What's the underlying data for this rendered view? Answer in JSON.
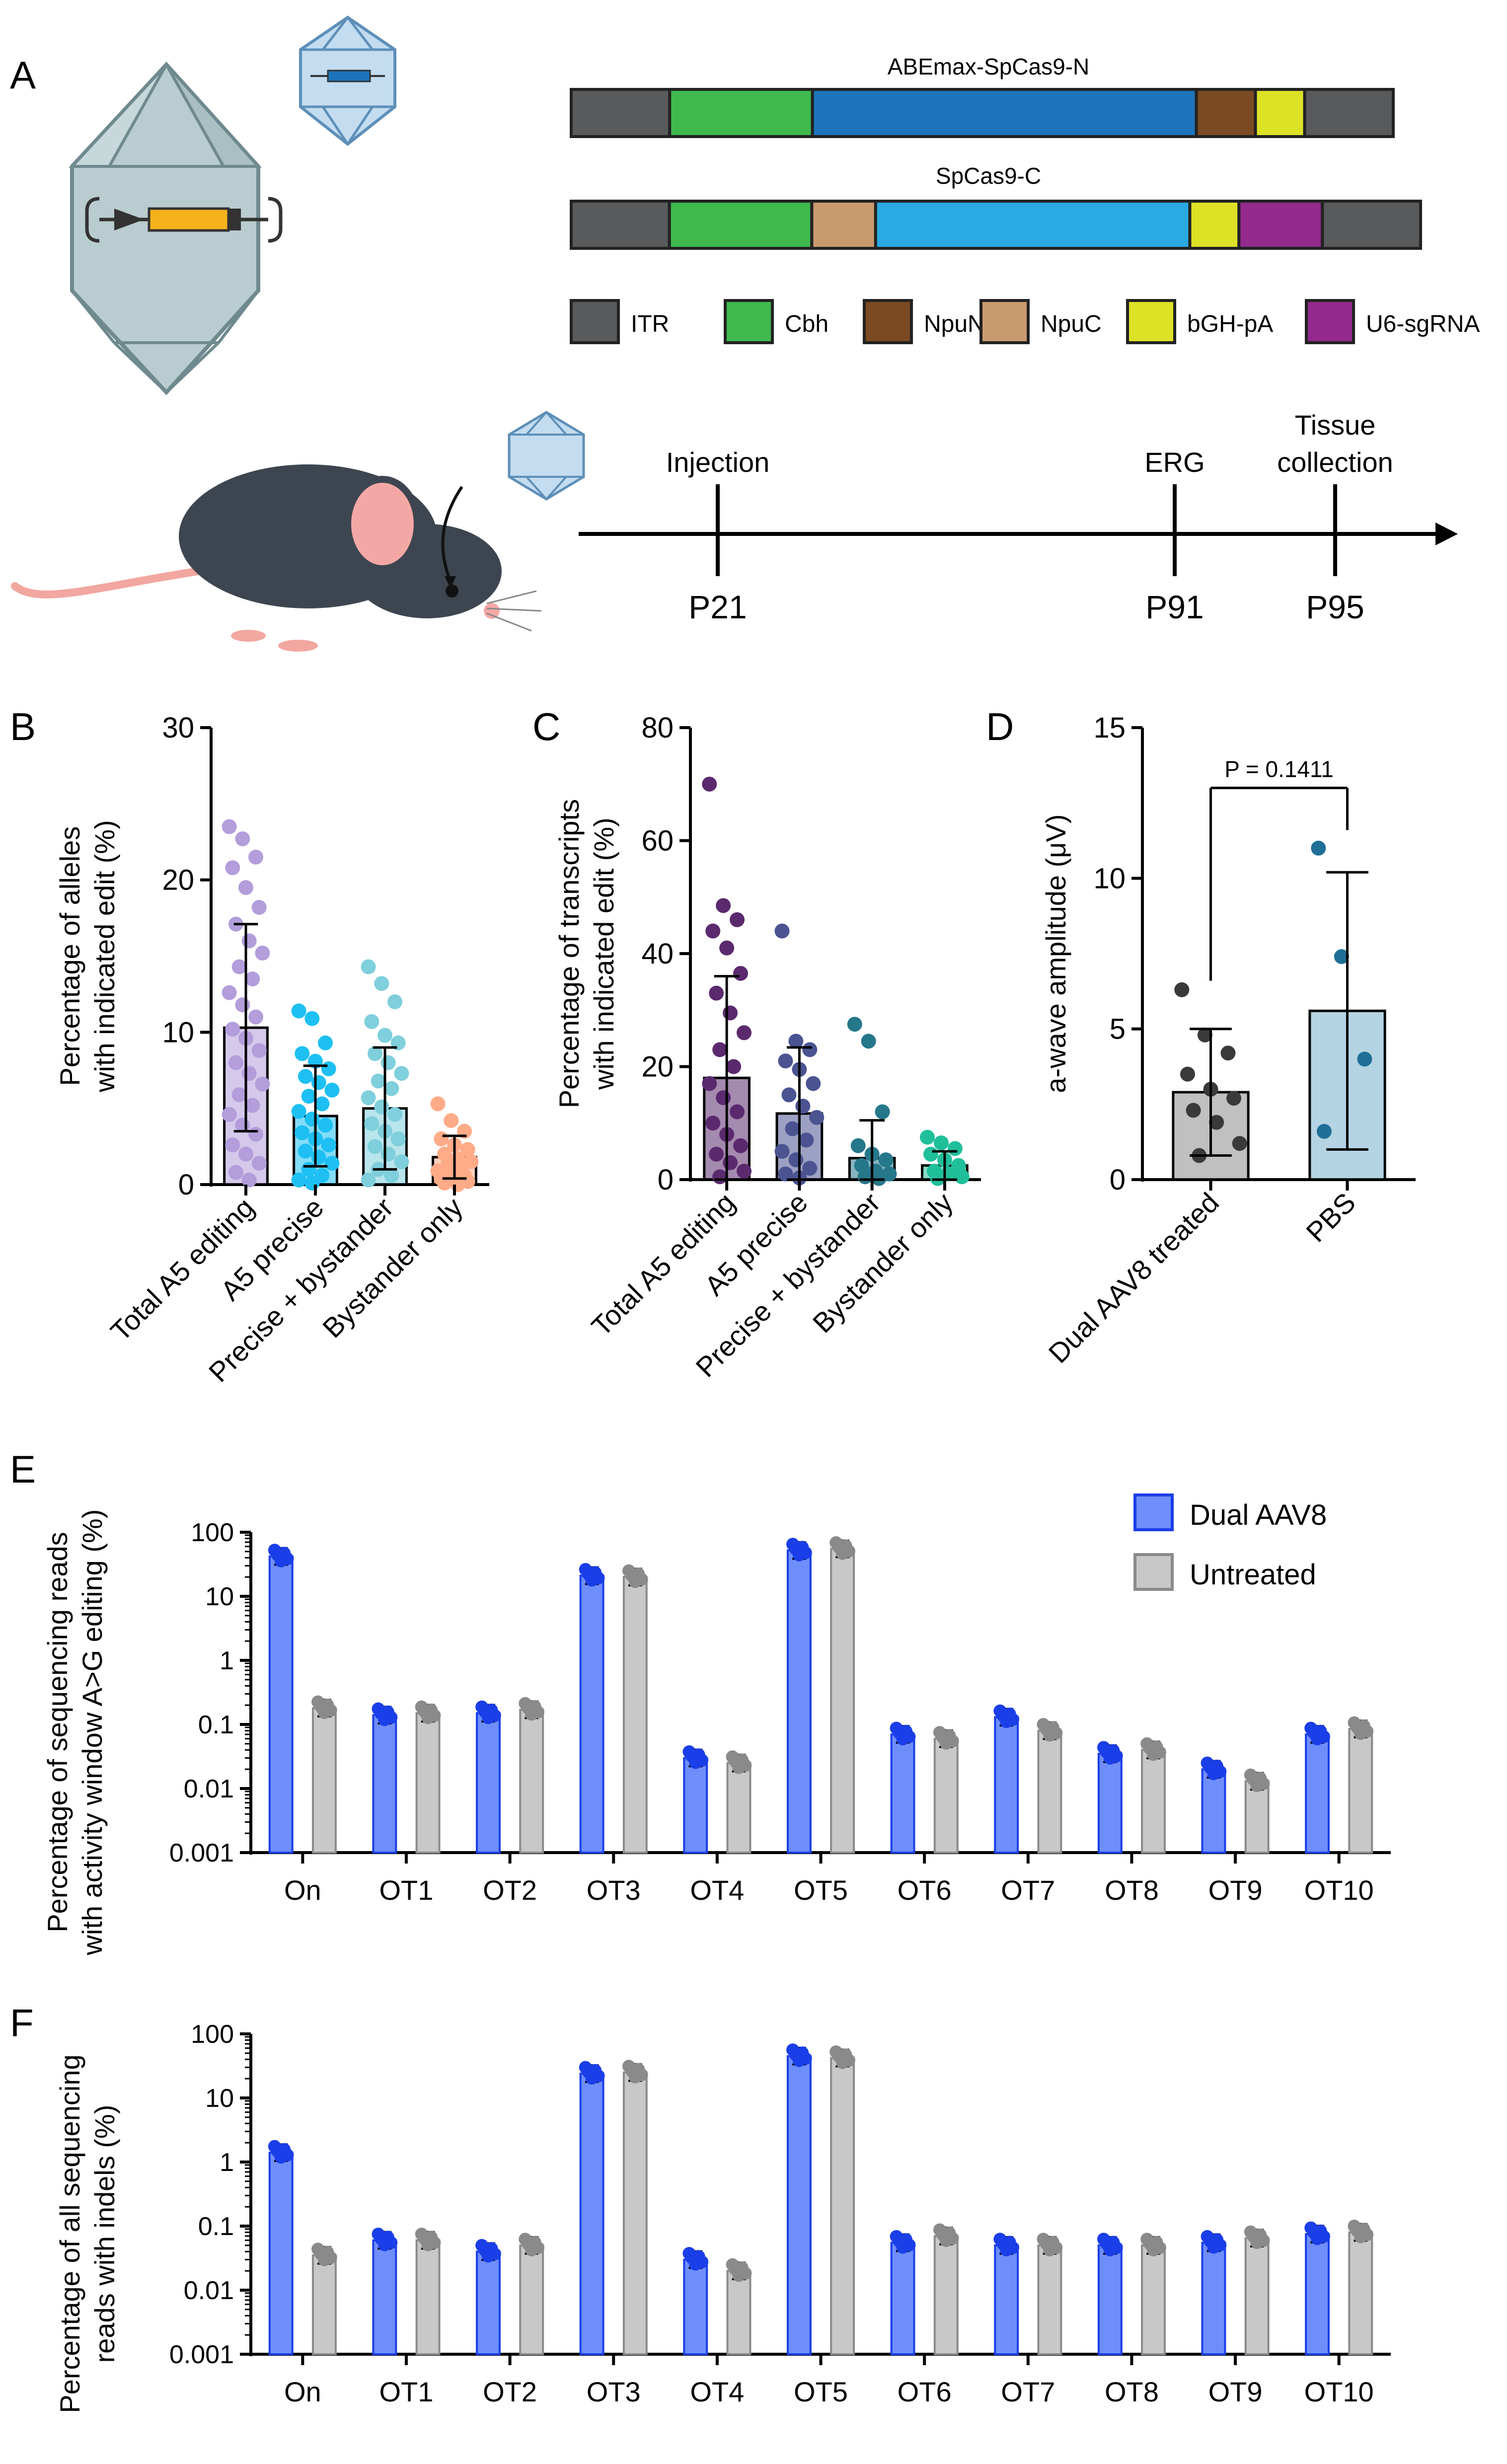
{
  "panels": {
    "A": "A",
    "B": "B",
    "C": "C",
    "D": "D",
    "E": "E",
    "F": "F"
  },
  "constructs": [
    {
      "name": "ABEmax-SpCas9-N",
      "segments": [
        {
          "part": "ITR",
          "w": 1.0
        },
        {
          "part": "Cbh",
          "w": 1.45
        },
        {
          "part": "SpCas9",
          "w": 3.9
        },
        {
          "part": "NpuN",
          "w": 0.6
        },
        {
          "part": "bGH-pA",
          "w": 0.5
        },
        {
          "part": "ITR",
          "w": 0.9
        }
      ]
    },
    {
      "name": "SpCas9-C",
      "segments": [
        {
          "part": "ITR",
          "w": 1.0
        },
        {
          "part": "Cbh",
          "w": 1.45
        },
        {
          "part": "NpuC",
          "w": 0.65
        },
        {
          "part": "SpCas9",
          "w": 3.2
        },
        {
          "part": "bGH-pA",
          "w": 0.5
        },
        {
          "part": "U6-sgRNA",
          "w": 0.85
        },
        {
          "part": "ITR",
          "w": 1.0
        }
      ]
    }
  ],
  "legend_a": [
    {
      "part": "ITR",
      "label": "ITR"
    },
    {
      "part": "Cbh",
      "label": "Cbh"
    },
    {
      "part": "NpuN",
      "label": "NpuN"
    },
    {
      "part": "NpuC",
      "label": "NpuC"
    },
    {
      "part": "bGH-pA",
      "label": "bGH-pA"
    },
    {
      "part": "U6-sgRNA",
      "label": "U6-sgRNA"
    }
  ],
  "part_colors": {
    "ITR": "#595a5c",
    "Cbh": "#3fb94e",
    "NpuN": "#7b4a22",
    "NpuC": "#c99a6e",
    "bGH-pA": "#dde227",
    "U6-sgRNA": "#932a8c",
    "SpCas9": "#1e74ba",
    "SpCas9-C": "#2aaae2"
  },
  "timeline": {
    "events": [
      {
        "label": "Injection",
        "day": "P21"
      },
      {
        "label": "ERG",
        "day": "P91"
      },
      {
        "label": "Tissue collection",
        "label_lines": [
          "Tissue",
          "collection"
        ],
        "day": "P95"
      }
    ]
  },
  "chart_data": [
    {
      "panel": "B",
      "type": "bar",
      "ylabel_lines": [
        "Percentage of alleles",
        "with indicated edit (%)"
      ],
      "ylim": [
        0,
        30
      ],
      "yticks": [
        0,
        10,
        20,
        30
      ],
      "categories": [
        "Total A5 editing",
        "A5 precise",
        "Precise + bystander",
        "Bystander only"
      ],
      "values": [
        10.3,
        4.5,
        5.0,
        1.8
      ],
      "sd": [
        6.8,
        3.3,
        4.0,
        1.4
      ],
      "colors": [
        "#b39ddb",
        "#1ec0f3",
        "#7fcfdc",
        "#ffab87"
      ],
      "points": [
        [
          23.5,
          22.7,
          21.5,
          20.8,
          19.5,
          18.2,
          17.1,
          16.0,
          15.2,
          14.3,
          13.5,
          12.6,
          11.8,
          11.0,
          10.2,
          9.6,
          8.8,
          8.0,
          7.3,
          6.6,
          5.9,
          5.2,
          4.6,
          3.9,
          3.3,
          2.6,
          2.0,
          1.4,
          0.8,
          0.3
        ],
        [
          11.4,
          10.9,
          9.3,
          8.6,
          8.1,
          7.6,
          7.1,
          6.7,
          6.2,
          5.8,
          5.3,
          4.8,
          4.3,
          3.9,
          3.4,
          3.0,
          2.6,
          2.2,
          1.8,
          1.4,
          1.0,
          0.6,
          0.3,
          0.1
        ],
        [
          14.3,
          13.2,
          12.0,
          10.7,
          9.8,
          9.3,
          8.6,
          8.0,
          7.3,
          6.8,
          6.3,
          5.7,
          5.1,
          4.6,
          4.0,
          3.5,
          3.0,
          2.5,
          2.0,
          1.5,
          1.0,
          0.6,
          0.3
        ],
        [
          5.3,
          4.2,
          3.5,
          3.0,
          2.6,
          2.3,
          2.0,
          1.7,
          1.5,
          1.3,
          1.1,
          0.9,
          0.7,
          0.6,
          0.4,
          0.3,
          0.2,
          0.1,
          0.0
        ]
      ]
    },
    {
      "panel": "C",
      "type": "bar",
      "ylabel_lines": [
        "Percentage of transcripts",
        "with indicated edit (%)"
      ],
      "ylim": [
        0,
        80
      ],
      "yticks": [
        0,
        20,
        40,
        60,
        80
      ],
      "categories": [
        "Total A5 editing",
        "A5 precise",
        "Precise + bystander",
        "Bystander only"
      ],
      "values": [
        18.0,
        11.7,
        3.8,
        2.5
      ],
      "sd": [
        18.0,
        11.7,
        6.7,
        2.5
      ],
      "colors": [
        "#5b2a6e",
        "#4b5491",
        "#25778a",
        "#1fbf9a"
      ],
      "points": [
        [
          70.0,
          48.5,
          46.0,
          44.0,
          41.0,
          36.5,
          33.0,
          29.5,
          26.0,
          23.0,
          20.0,
          17.0,
          14.5,
          12.0,
          10.0,
          8.0,
          6.0,
          4.5,
          3.0,
          1.5,
          0.5
        ],
        [
          44.0,
          24.5,
          23.0,
          21.0,
          19.5,
          17.0,
          15.0,
          13.0,
          11.0,
          9.0,
          7.0,
          5.0,
          3.5,
          2.0,
          1.0,
          0.3
        ],
        [
          27.5,
          24.5,
          12.0,
          6.0,
          4.5,
          3.5,
          2.5,
          1.5,
          1.0,
          0.5,
          0.2
        ],
        [
          7.5,
          6.5,
          5.5,
          4.5,
          3.5,
          2.5,
          1.5,
          1.0,
          0.5,
          0.2
        ]
      ]
    },
    {
      "panel": "D",
      "type": "bar",
      "ylabel": "a-wave amplitude (μV)",
      "ylim": [
        0,
        15
      ],
      "yticks": [
        0,
        5,
        10,
        15
      ],
      "categories": [
        "Dual AAV8 treated",
        "PBS"
      ],
      "values": [
        2.9,
        5.6
      ],
      "sd": [
        2.1,
        4.6
      ],
      "colors": [
        "#8c8c8c",
        "#78b0cc"
      ],
      "point_colors": [
        "#3a3a3a",
        "#1f6f96"
      ],
      "points": [
        [
          6.3,
          4.8,
          4.2,
          3.5,
          3.0,
          2.7,
          2.3,
          1.9,
          1.2,
          0.8
        ],
        [
          11.0,
          7.4,
          4.0,
          1.6
        ]
      ],
      "annotation_label": "P = 0.1411"
    },
    {
      "panel": "E",
      "type": "bar",
      "yscale": "log",
      "ylabel_lines": [
        "Percentage of sequencing reads",
        "with activity window A>G editing (%)"
      ],
      "ylim": [
        0.001,
        100
      ],
      "yticks": [
        "0.001",
        "0.01",
        "0.1",
        "1",
        "10",
        "100"
      ],
      "categories": [
        "On",
        "OT1",
        "OT2",
        "OT3",
        "OT4",
        "OT5",
        "OT6",
        "OT7",
        "OT8",
        "OT9",
        "OT10"
      ],
      "series": [
        {
          "name": "Dual AAV8",
          "color": "#6e8efb",
          "edge": "#1a3ee8",
          "values": [
            42,
            0.14,
            0.15,
            21,
            0.03,
            52,
            0.07,
            0.13,
            0.035,
            0.02,
            0.07
          ]
        },
        {
          "name": "Untreated",
          "color": "#c8c8c8",
          "edge": "#8a8a8a",
          "values": [
            0.18,
            0.15,
            0.17,
            20,
            0.025,
            55,
            0.06,
            0.08,
            0.04,
            0.013,
            0.085
          ]
        }
      ]
    },
    {
      "panel": "F",
      "type": "bar",
      "yscale": "log",
      "ylabel_lines": [
        "Percentage of all sequencing",
        "reads with indels (%)"
      ],
      "ylim": [
        0.001,
        100
      ],
      "yticks": [
        "0.001",
        "0.01",
        "0.1",
        "1",
        "10",
        "100"
      ],
      "categories": [
        "On",
        "OT1",
        "OT2",
        "OT3",
        "OT4",
        "OT5",
        "OT6",
        "OT7",
        "OT8",
        "OT9",
        "OT10"
      ],
      "series": [
        {
          "name": "Dual AAV8",
          "color": "#6e8efb",
          "edge": "#1a3ee8",
          "values": [
            1.4,
            0.06,
            0.04,
            24,
            0.03,
            45,
            0.055,
            0.05,
            0.05,
            0.055,
            0.075
          ]
        },
        {
          "name": "Untreated",
          "color": "#c8c8c8",
          "edge": "#8a8a8a",
          "values": [
            0.035,
            0.06,
            0.05,
            25,
            0.02,
            42,
            0.07,
            0.05,
            0.05,
            0.065,
            0.08
          ]
        }
      ]
    }
  ]
}
